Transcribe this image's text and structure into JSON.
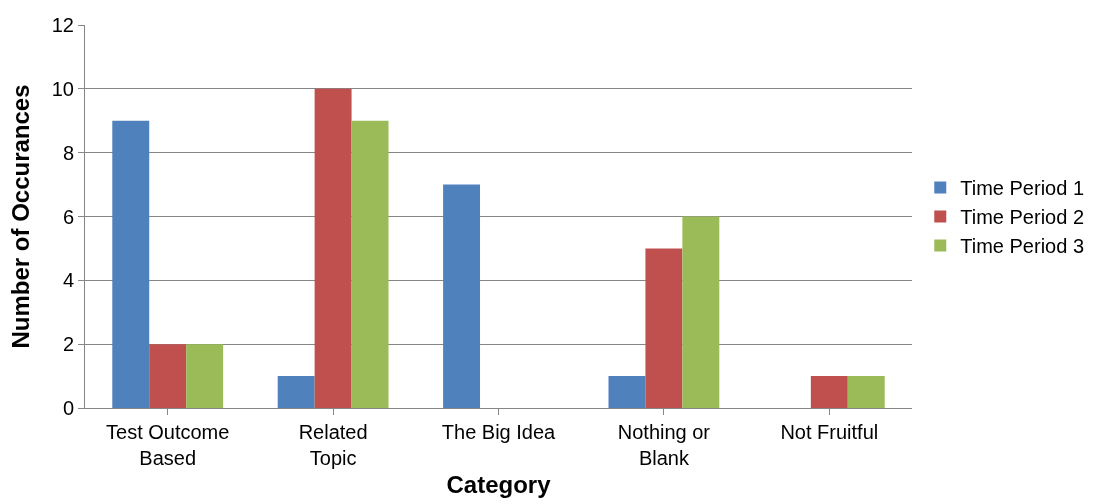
{
  "chart_data": {
    "type": "bar",
    "xlabel": "Category",
    "ylabel": "Number of Occurances",
    "categories": [
      "Test Outcome Based",
      "Related Topic",
      "The Big Idea",
      "Nothing or Blank",
      "Not Fruitful"
    ],
    "series": [
      {
        "name": "Time Period 1",
        "color": "#4f81bd",
        "values": [
          9,
          1,
          7,
          1,
          0
        ]
      },
      {
        "name": "Time Period 2",
        "color": "#c0504d",
        "values": [
          2,
          10,
          0,
          5,
          1
        ]
      },
      {
        "name": "Time Period 3",
        "color": "#9bbb59",
        "values": [
          2,
          9,
          0,
          6,
          1
        ]
      }
    ],
    "ylim": [
      0,
      12
    ],
    "yticks": [
      0,
      2,
      4,
      6,
      8,
      10,
      12
    ],
    "grid": "y",
    "legend": "right"
  }
}
